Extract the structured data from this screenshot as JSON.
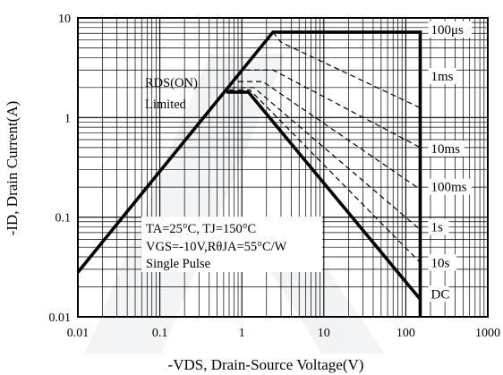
{
  "chart_data": {
    "type": "line",
    "xscale": "log",
    "yscale": "log",
    "xlim": [
      0.01,
      1000
    ],
    "ylim": [
      0.01,
      10
    ],
    "grid": true,
    "xlabel": "-VDS, Drain-Source Voltage(V)",
    "ylabel": "-ID, Drain Current(A)",
    "xticks": [
      "0.01",
      "0.1",
      "1",
      "10",
      "100",
      "1000"
    ],
    "yticks": [
      "0.01",
      "0.1",
      "1",
      "10"
    ],
    "rds_label": [
      "RDS(ON)",
      "Limited"
    ],
    "conditions": [
      "TA=25°C, TJ=150°C",
      "VGS=-10V,RθJA=55°C/W",
      "Single Pulse"
    ],
    "series": [
      {
        "name": "100μs",
        "style": "solid",
        "x": [
          0.01,
          2.4,
          150,
          150
        ],
        "y": [
          0.028,
          7.2,
          7.2,
          0.01
        ]
      },
      {
        "name": "1ms",
        "style": "dashed",
        "x": [
          2.4,
          3.0,
          150
        ],
        "y": [
          7.2,
          5.7,
          1.25
        ]
      },
      {
        "name": "10ms",
        "style": "dashed",
        "x": [
          1.1,
          2.4,
          150
        ],
        "y": [
          3.0,
          3.0,
          0.5
        ]
      },
      {
        "name": "100ms",
        "style": "dashed",
        "x": [
          0.9,
          1.8,
          150
        ],
        "y": [
          2.3,
          2.3,
          0.19
        ]
      },
      {
        "name": "1s",
        "style": "dashed",
        "x": [
          0.75,
          1.4,
          150
        ],
        "y": [
          2.0,
          2.0,
          0.075
        ]
      },
      {
        "name": "10s",
        "style": "dashed",
        "x": [
          0.7,
          1.25,
          150
        ],
        "y": [
          1.9,
          1.9,
          0.035
        ]
      },
      {
        "name": "DC",
        "style": "solid",
        "x": [
          0.65,
          1.2,
          150
        ],
        "y": [
          1.8,
          1.8,
          0.015
        ]
      }
    ]
  }
}
